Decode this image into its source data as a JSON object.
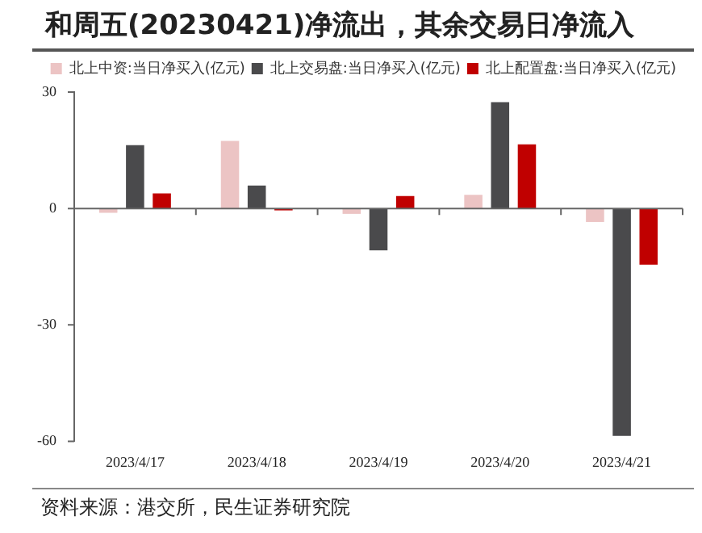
{
  "chart_data": {
    "type": "bar",
    "title": "和周五(20230421)净流出，其余交易日净流入",
    "categories": [
      "2023/4/17",
      "2023/4/18",
      "2023/4/19",
      "2023/4/20",
      "2023/4/21"
    ],
    "series": [
      {
        "name": "北上中资:当日净买入(亿元)",
        "color": "#ecc4c4",
        "values": [
          -1.1,
          17.4,
          -1.4,
          3.5,
          -3.5
        ]
      },
      {
        "name": "北上交易盘:当日净买入(亿元)",
        "color": "#4a4a4c",
        "values": [
          16.3,
          5.9,
          -10.8,
          27.4,
          -58.6
        ]
      },
      {
        "name": "北上配置盘:当日净买入(亿元)",
        "color": "#c00000",
        "values": [
          3.9,
          -0.5,
          3.2,
          16.5,
          -14.5
        ]
      }
    ],
    "ylim": [
      -60,
      30
    ],
    "yticks": [
      -60,
      -30,
      0,
      30
    ],
    "legend": "top",
    "annotations": [
      "资料来源：港交所，民生证券研究院"
    ]
  }
}
